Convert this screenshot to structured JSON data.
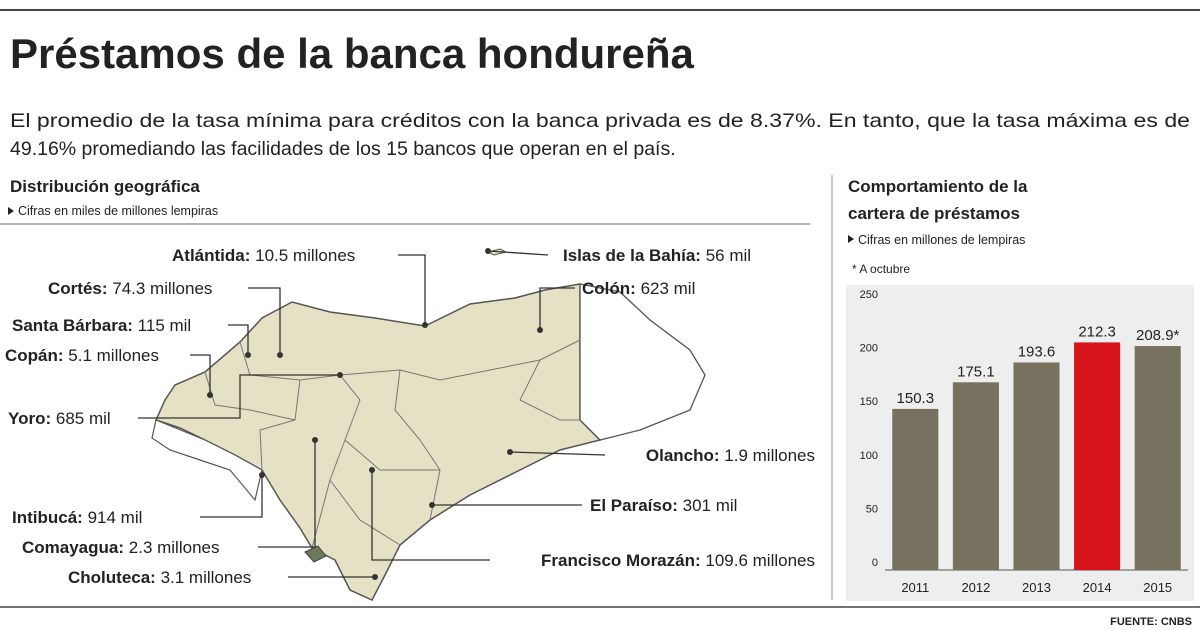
{
  "header": {
    "title": "Préstamos de la banca hondureña",
    "intro": [
      "El promedio de la tasa mínima para créditos con la banca privada es de 8.37%. En tanto, que la tasa máxima es de",
      "49.16% promediando las facilidades de los 15 bancos que operan en el país."
    ]
  },
  "map": {
    "title": "Distribución geográfica",
    "subtitle": "Cifras en miles de millones lempiras",
    "labels": [
      {
        "name": "Atlántida:",
        "value": "10.5 millones"
      },
      {
        "name": "Islas de la Bahía:",
        "value": "56 mil"
      },
      {
        "name": "Cortés:",
        "value": "74.3 millones"
      },
      {
        "name": "Colón:",
        "value": "623 mil"
      },
      {
        "name": "Santa Bárbara:",
        "value": "115 mil"
      },
      {
        "name": "Copán:",
        "value": "5.1 millones"
      },
      {
        "name": "Yoro:",
        "value": "685 mil"
      },
      {
        "name": "Olancho:",
        "value": "1.9 millones"
      },
      {
        "name": "El Paraíso:",
        "value": "301 mil"
      },
      {
        "name": "Intibucá:",
        "value": "914 mil"
      },
      {
        "name": "Comayagua:",
        "value": "2.3 millones"
      },
      {
        "name": "Francisco Morazán:",
        "value": "109.6 millones"
      },
      {
        "name": "Choluteca:",
        "value": "3.1 millones"
      }
    ]
  },
  "chart_data": {
    "type": "bar",
    "title": [
      "Comportamiento de la",
      "cartera de préstamos"
    ],
    "subtitle": "Cifras en millones de lempiras",
    "note": "* A octubre",
    "categories": [
      "2011",
      "2012",
      "2013",
      "2014",
      "2015"
    ],
    "values": [
      150.3,
      175.1,
      193.6,
      212.3,
      208.9
    ],
    "value_labels": [
      "150.3",
      "175.1",
      "193.6",
      "212.3",
      "208.9*"
    ],
    "colors": [
      "#76725f",
      "#76725f",
      "#76725f",
      "#d7141a",
      "#76725f"
    ],
    "ylim": [
      0,
      250
    ],
    "yticks": [
      0,
      50,
      100,
      150,
      200,
      250
    ]
  },
  "footer": {
    "source": "FUENTE: CNBS"
  }
}
